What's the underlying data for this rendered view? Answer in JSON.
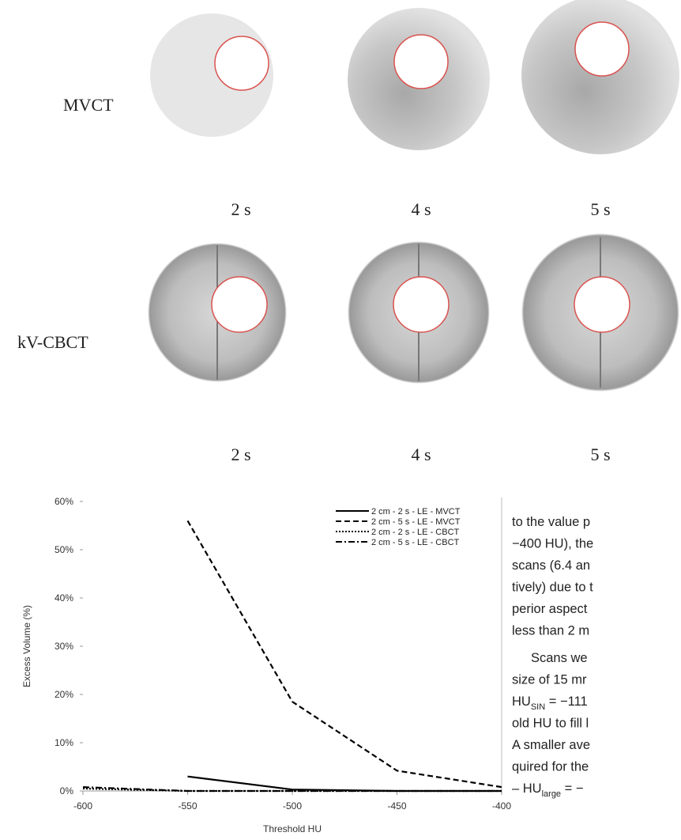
{
  "figure": {
    "row_labels": [
      "MVCT",
      "kV-CBCT"
    ],
    "time_labels": [
      [
        "2 s",
        "4 s",
        "5 s"
      ],
      [
        "2 s",
        "4 s",
        "5 s"
      ]
    ]
  },
  "chart_data": {
    "type": "line",
    "ylabel": "Excess Volume (%)",
    "xlabel": "Threshold HU",
    "x": [
      -600,
      -550,
      -500,
      -450,
      -400
    ],
    "xlim": [
      -600,
      -400
    ],
    "xticks": [
      -600,
      -550,
      -500,
      -450,
      -400
    ],
    "ylim": [
      0,
      60
    ],
    "yticks": [
      {
        "value": 0,
        "label": "0%"
      },
      {
        "value": 10,
        "label": "10%"
      },
      {
        "value": 20,
        "label": "20%"
      },
      {
        "value": 30,
        "label": "30%"
      },
      {
        "value": 40,
        "label": "40%"
      },
      {
        "value": 50,
        "label": "50%"
      },
      {
        "value": 60,
        "label": "60%"
      }
    ],
    "legend": "upper right",
    "series": [
      {
        "name": "2 cm - 2 s - LE - MVCT",
        "color": "#000000",
        "dash": "solid",
        "values": [
          null,
          3,
          0.3,
          0,
          0
        ]
      },
      {
        "name": "2 cm - 5 s - LE - MVCT",
        "color": "#000000",
        "dash": "dashed",
        "values": [
          null,
          56,
          18.5,
          4.2,
          0.8
        ]
      },
      {
        "name": "2 cm - 2 s - LE - CBCT",
        "color": "#000000",
        "dash": "dotted",
        "values": [
          0.5,
          0,
          0,
          0,
          0
        ]
      },
      {
        "name": "2 cm - 5 s - LE - CBCT",
        "color": "#000000",
        "dash": "dashdot",
        "values": [
          0.8,
          0,
          0,
          0,
          0
        ]
      }
    ]
  },
  "body_text": {
    "paragraphs": [
      [
        [
          {
            "text": "to the value p"
          }
        ],
        [
          {
            "text": "−400 HU), the"
          }
        ],
        [
          {
            "text": "scans (6.4 an"
          }
        ],
        [
          {
            "text": "tively) due to t"
          }
        ],
        [
          {
            "text": "perior aspect"
          }
        ],
        [
          {
            "text": "less than 2 m"
          }
        ]
      ],
      [
        [
          {
            "text": "Scans we"
          }
        ],
        [
          {
            "text": "size of 15 mr"
          }
        ],
        [
          {
            "text": "HU"
          },
          {
            "text": "SIN",
            "sub": true
          },
          {
            "text": " = −111"
          }
        ],
        [
          {
            "text": "old HU to fill l"
          }
        ],
        [
          {
            "text": "A smaller ave"
          }
        ],
        [
          {
            "text": "quired for the"
          }
        ],
        [
          {
            "text": "– HU"
          },
          {
            "text": "large",
            "sub": true
          },
          {
            "text": " = −"
          }
        ]
      ]
    ]
  }
}
